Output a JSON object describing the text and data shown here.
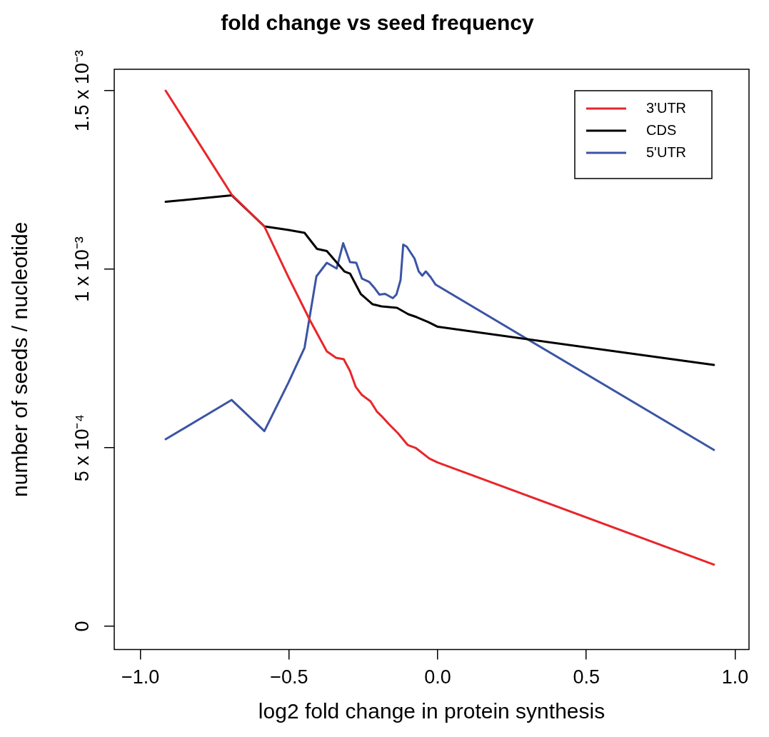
{
  "chart_data": {
    "type": "line",
    "title": "fold change vs seed frequency",
    "xlabel": "log2 fold change in protein synthesis",
    "ylabel": "number of seeds / nucleotide",
    "xlim": [
      -1.088,
      1.047
    ],
    "xticks": [
      {
        "value": -1,
        "label": "−1.0"
      },
      {
        "value": -0.5,
        "label": "−0.5"
      },
      {
        "value": 0,
        "label": "0.0"
      },
      {
        "value": 0.5,
        "label": "0.5"
      },
      {
        "value": 1,
        "label": "1.0"
      }
    ],
    "ylim": [
      -6.5e-05,
      0.00156
    ],
    "yticks": [
      0,
      {
        "value": 0.0005,
        "label": "5 x 10⁻⁴"
      },
      {
        "value": 0.001,
        "label": "1 x 10⁻³"
      },
      {
        "value": 0.0015,
        "label": "1.5 x 10⁻³"
      }
    ],
    "grid": false,
    "legend": "top right",
    "marker": "none",
    "line_style": "solid",
    "series": [
      {
        "name": "3'UTR",
        "color": "#e8262a",
        "x": [
          -0.915,
          -0.693,
          -0.583,
          -0.502,
          -0.429,
          -0.373,
          -0.342,
          -0.316,
          -0.295,
          -0.276,
          -0.255,
          -0.226,
          -0.205,
          -0.189,
          -0.165,
          -0.134,
          -0.101,
          -0.075,
          -0.059,
          -0.028,
          0.0,
          0.929
        ],
        "values": [
          0.0015,
          0.001209,
          0.00112,
          0.000978,
          0.000856,
          0.00077,
          0.000752,
          0.000748,
          0.000715,
          0.000671,
          0.000648,
          0.00063,
          0.000602,
          0.000589,
          0.000567,
          0.000541,
          0.000508,
          0.0005,
          0.00049,
          0.00047,
          0.000459,
          0.000173
        ]
      },
      {
        "name": "CDS",
        "color": "#000000",
        "x": [
          -0.915,
          -0.693,
          -0.583,
          -0.502,
          -0.448,
          -0.406,
          -0.373,
          -0.314,
          -0.295,
          -0.259,
          -0.219,
          -0.189,
          -0.137,
          -0.099,
          -0.071,
          -0.031,
          0.0,
          0.929
        ],
        "values": [
          0.001189,
          0.001207,
          0.00112,
          0.00111,
          0.001102,
          0.001057,
          0.001051,
          0.000994,
          0.000988,
          0.000931,
          0.000902,
          0.000896,
          0.000892,
          0.000874,
          0.000866,
          0.000852,
          0.000839,
          0.000732
        ]
      },
      {
        "name": "5'UTR",
        "color": "#3b54a4",
        "x": [
          -0.915,
          -0.693,
          -0.583,
          -0.502,
          -0.448,
          -0.408,
          -0.373,
          -0.34,
          -0.318,
          -0.295,
          -0.274,
          -0.255,
          -0.231,
          -0.212,
          -0.196,
          -0.177,
          -0.151,
          -0.139,
          -0.125,
          -0.116,
          -0.104,
          -0.078,
          -0.064,
          -0.052,
          -0.04,
          -0.024,
          -0.007,
          0.929
        ],
        "values": [
          0.000524,
          0.000634,
          0.000547,
          0.000683,
          0.00078,
          0.00098,
          0.001018,
          0.001002,
          0.001073,
          0.00102,
          0.001018,
          0.000974,
          0.000965,
          0.000947,
          0.000929,
          0.000931,
          0.000919,
          0.000929,
          0.00097,
          0.001069,
          0.001063,
          0.00103,
          0.000994,
          0.000982,
          0.000994,
          0.000978,
          0.000957,
          0.000494
        ]
      }
    ]
  }
}
